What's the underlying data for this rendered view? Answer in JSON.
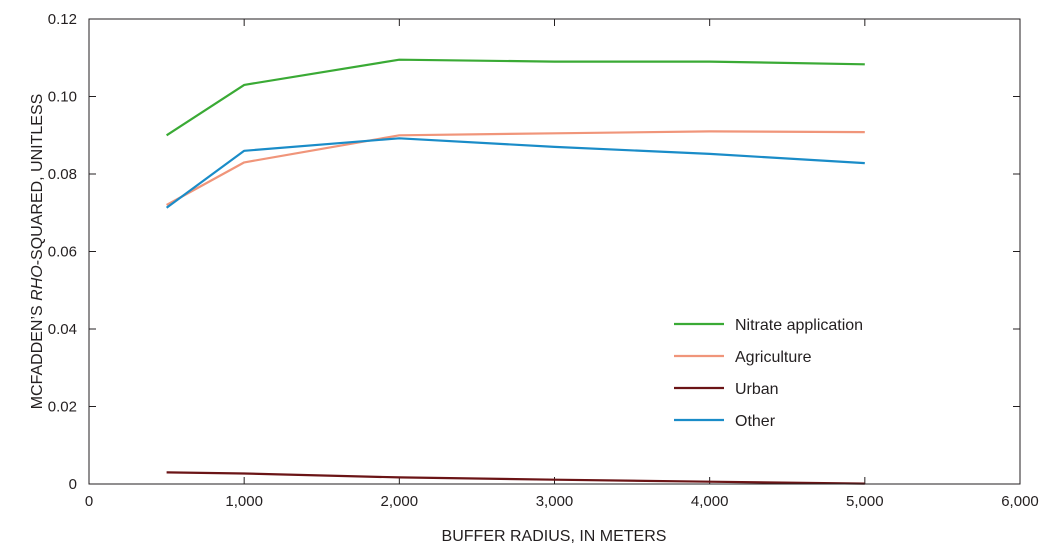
{
  "chart_data": {
    "type": "line",
    "xlabel": "BUFFER RADIUS, IN METERS",
    "ylabel_parts": [
      {
        "text": "MCFADDEN’S ",
        "italic": false
      },
      {
        "text": "RHO",
        "italic": true
      },
      {
        "text": "-SQUARED, UNITLESS",
        "italic": false
      }
    ],
    "xlim": [
      0,
      6000
    ],
    "ylim": [
      0,
      0.12
    ],
    "x_ticks": [
      0,
      1000,
      2000,
      3000,
      4000,
      5000,
      6000
    ],
    "x_tick_labels": [
      "0",
      "1,000",
      "2,000",
      "3,000",
      "4,000",
      "5,000",
      "6,000"
    ],
    "y_ticks": [
      0,
      0.02,
      0.04,
      0.06,
      0.08,
      0.1,
      0.12
    ],
    "y_tick_labels": [
      "0",
      "0.02",
      "0.04",
      "0.06",
      "0.08",
      "0.10",
      "0.12"
    ],
    "grid": false,
    "legend_position": "lower-right",
    "x": [
      500,
      1000,
      2000,
      3000,
      4000,
      5000
    ],
    "series": [
      {
        "name": "Nitrate application",
        "color": "#3aaa35",
        "values": [
          0.09,
          0.103,
          0.1095,
          0.109,
          0.109,
          0.1083
        ]
      },
      {
        "name": "Agriculture",
        "color": "#f0957a",
        "values": [
          0.072,
          0.083,
          0.09,
          0.0905,
          0.091,
          0.0908
        ]
      },
      {
        "name": "Urban",
        "color": "#6b1416",
        "values": [
          0.003,
          0.0027,
          0.0017,
          0.0011,
          0.0006,
          0.0001
        ]
      },
      {
        "name": "Other",
        "color": "#1a8cc8",
        "values": [
          0.0713,
          0.086,
          0.0892,
          0.087,
          0.0852,
          0.0828
        ]
      }
    ]
  }
}
